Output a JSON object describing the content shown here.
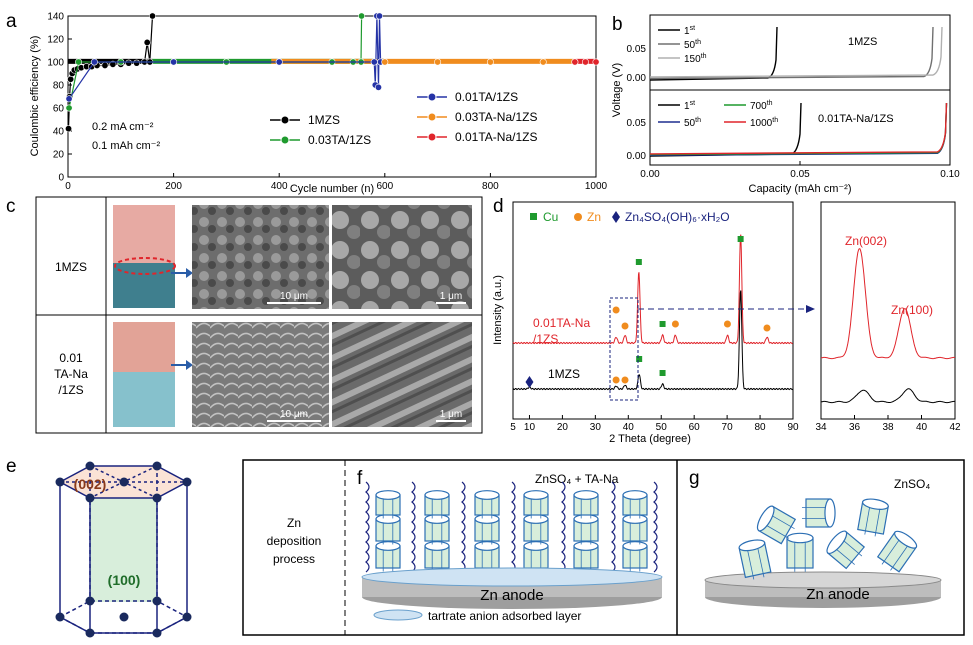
{
  "panels": {
    "a": "a",
    "b": "b",
    "c": "c",
    "d": "d",
    "e": "e",
    "f": "f",
    "g": "g"
  },
  "chart_data": [
    {
      "panel": "a",
      "type": "scatter",
      "xlabel": "Cycle number (n)",
      "ylabel": "Coulombic efficiency (%)",
      "xlim": [
        0,
        1000
      ],
      "ylim": [
        0,
        140
      ],
      "xticks": [
        "0",
        "200",
        "400",
        "600",
        "800",
        "1000"
      ],
      "yticks": [
        "0",
        "20",
        "40",
        "60",
        "80",
        "100",
        "120",
        "140"
      ],
      "conditions": [
        "0.2 mA cm⁻²",
        "0.1 mAh cm⁻²"
      ],
      "series": [
        {
          "name": "1MZS",
          "color": "#000000",
          "x": [
            1,
            3,
            5,
            8,
            12,
            18,
            25,
            35,
            45,
            55,
            70,
            85,
            100,
            115,
            130,
            145,
            150,
            155,
            160
          ],
          "y": [
            42,
            70,
            85,
            90,
            93,
            94,
            95,
            96,
            96,
            97,
            97,
            98,
            98,
            99,
            99,
            100,
            117,
            100,
            140
          ]
        },
        {
          "name": "0.03TA/1ZS",
          "color": "#1f9a2e",
          "x": [
            2,
            20,
            100,
            200,
            300,
            400,
            500,
            540,
            555,
            556
          ],
          "y": [
            60,
            100,
            100,
            100,
            100,
            100,
            100,
            100,
            100,
            140
          ]
        },
        {
          "name": "0.01TA/1ZS",
          "color": "#2533a6",
          "x": [
            2,
            50,
            200,
            400,
            580,
            582,
            585,
            588,
            590,
            592
          ],
          "y": [
            68,
            100,
            100,
            100,
            100,
            80,
            140,
            78,
            140,
            100
          ]
        },
        {
          "name": "0.03TA-Na/1ZS",
          "color": "#f08c1e",
          "x": [
            600,
            700,
            800,
            900,
            960
          ],
          "y": [
            100,
            100,
            100,
            100,
            100
          ]
        },
        {
          "name": "0.01TA-Na/1ZS",
          "color": "#e0252b",
          "x": [
            960,
            980,
            1000
          ],
          "y": [
            100,
            100,
            100
          ]
        }
      ]
    },
    {
      "panel": "b",
      "type": "line",
      "xlabel": "Capacity (mAh cm⁻²)",
      "ylabel": "Voltage (V)",
      "xlim": [
        0,
        0.1
      ],
      "xticks": [
        "0.00",
        "0.05",
        "0.10"
      ],
      "yticks_top": [
        "0.00",
        "0.05"
      ],
      "yticks_bottom": [
        "0.00",
        "0.05"
      ],
      "subplots": [
        {
          "label": "1MZS",
          "series": [
            {
              "name": "1st",
              "sup": "st",
              "base": "1",
              "color": "#000000",
              "end_capacity": 0.042
            },
            {
              "name": "50th",
              "sup": "th",
              "base": "50",
              "color": "#707070",
              "end_capacity": 0.094
            },
            {
              "name": "150th",
              "sup": "th",
              "base": "150",
              "color": "#b0b0b0",
              "end_capacity": 0.097
            }
          ]
        },
        {
          "label": "0.01TA-Na/1ZS",
          "series": [
            {
              "name": "1st",
              "sup": "st",
              "base": "1",
              "color": "#000000",
              "end_capacity": 0.05
            },
            {
              "name": "50th",
              "sup": "th",
              "base": "50",
              "color": "#1f2f8f",
              "end_capacity": 0.0985
            },
            {
              "name": "700th",
              "sup": "th",
              "base": "700",
              "color": "#1f9a2e",
              "end_capacity": 0.0985
            },
            {
              "name": "1000th",
              "sup": "th",
              "base": "1000",
              "color": "#e0252b",
              "end_capacity": 0.0985
            }
          ]
        }
      ]
    },
    {
      "panel": "d",
      "type": "line",
      "xlabel": "2 Theta (degree)",
      "ylabel": "Intensity (a.u.)",
      "xlim": [
        5,
        90
      ],
      "xticks": [
        "5",
        "10",
        "20",
        "30",
        "40",
        "50",
        "60",
        "70",
        "80",
        "90"
      ],
      "zoom_xlim": [
        34,
        42
      ],
      "zoom_xticks": [
        "34",
        "36",
        "38",
        "40",
        "42"
      ],
      "legend": [
        "Cu",
        "Zn",
        "Zn₄SO₄(OH)₆·xH₂O"
      ],
      "series": [
        {
          "name": "0.01TA-Na/1ZS",
          "color": "#e0252b",
          "peaks_2theta": [
            36.3,
            39.0,
            43.2,
            50.4,
            54.3,
            70.1,
            74.1,
            82.1
          ]
        },
        {
          "name": "1MZS",
          "color": "#000000",
          "peaks_2theta": [
            10.0,
            36.3,
            39.0,
            43.3,
            50.4,
            74.1
          ]
        }
      ],
      "peak_labels": [
        "Zn(002)",
        "Zn(100)"
      ]
    }
  ],
  "panel_c": {
    "rows": [
      "1MZS",
      "0.01\nTA-Na\n/1ZS"
    ],
    "row_line1": [
      "1MZS",
      "0.01"
    ],
    "row_line2": [
      "",
      "TA-Na"
    ],
    "row_line3": [
      "",
      "/1ZS"
    ],
    "scalebars": [
      "10 μm",
      "1 μm",
      "10 μm",
      "1 μm"
    ]
  },
  "panel_e": {
    "facet_top": "(002)",
    "facet_side": "(100)"
  },
  "panel_f": {
    "left_label": [
      "Zn",
      "deposition",
      "process"
    ],
    "title": "ZnSO₄ + TA-Na",
    "anode": "Zn anode",
    "layer_legend": "tartrate anion adsorbed layer"
  },
  "panel_g": {
    "title": "ZnSO₄",
    "anode": "Zn anode"
  },
  "colors": {
    "cu": "#1f9a2e",
    "zn": "#f08c1e",
    "zhs": "#1a237e",
    "layer": "#cfe3f3",
    "crystal": "#d8eedb",
    "crystal_edge": "#2c6fb4",
    "anode": "#bdbdbd"
  }
}
